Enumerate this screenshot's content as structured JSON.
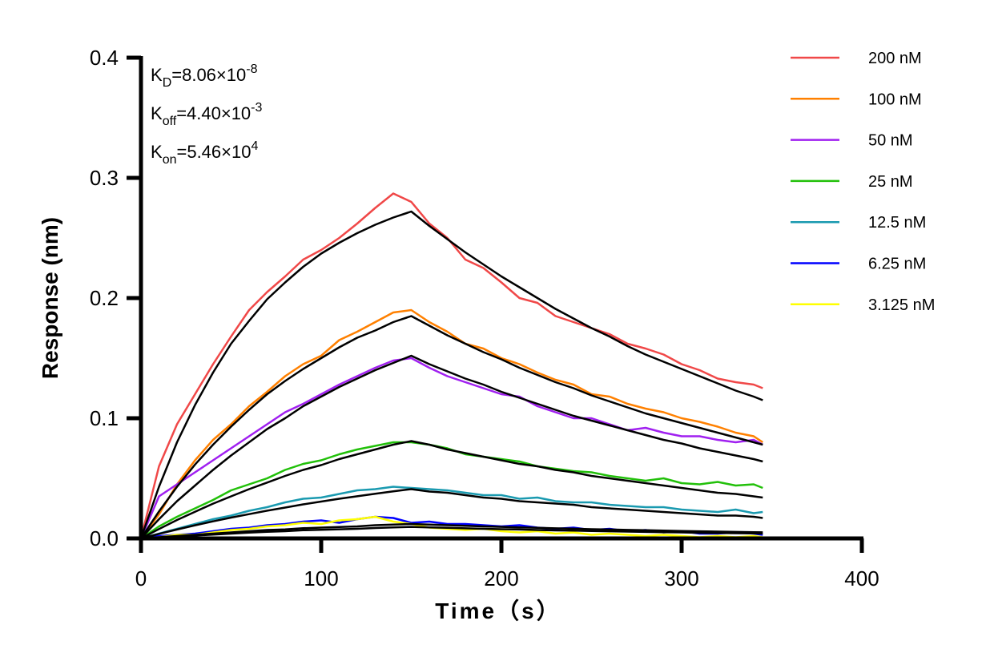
{
  "chart_data": {
    "type": "line",
    "title": "",
    "xlabel": "Time（s）",
    "ylabel": "Response (nm)",
    "xlim": [
      0,
      400
    ],
    "ylim": [
      0,
      0.4
    ],
    "xticks": [
      "0",
      "100",
      "200",
      "300",
      "400"
    ],
    "yticks": [
      "0.0",
      "0.1",
      "0.2",
      "0.3",
      "0.4"
    ],
    "grid": false,
    "legend_position": "top-right",
    "annotations": [
      {
        "main": "K",
        "sub": "D",
        "value": "=8.06×10",
        "exp": "-8"
      },
      {
        "main": "K",
        "sub": "off",
        "value": "=4.40×10",
        "exp": "-3"
      },
      {
        "main": "K",
        "sub": "on",
        "value": "=5.46×10",
        "exp": "4"
      }
    ],
    "fit_color": "#000000",
    "x": [
      0,
      10,
      20,
      30,
      40,
      50,
      60,
      70,
      80,
      90,
      100,
      110,
      120,
      130,
      140,
      150,
      160,
      170,
      180,
      190,
      200,
      210,
      220,
      230,
      240,
      250,
      260,
      270,
      280,
      290,
      300,
      310,
      320,
      330,
      340,
      345
    ],
    "series": [
      {
        "name": "200 nM",
        "color": "#f04848",
        "values": [
          0,
          0.06,
          0.095,
          0.12,
          0.145,
          0.168,
          0.19,
          0.205,
          0.218,
          0.232,
          0.24,
          0.25,
          0.262,
          0.275,
          0.287,
          0.28,
          0.262,
          0.25,
          0.232,
          0.225,
          0.213,
          0.2,
          0.196,
          0.185,
          0.18,
          0.175,
          0.17,
          0.162,
          0.158,
          0.153,
          0.145,
          0.14,
          0.133,
          0.13,
          0.128,
          0.125
        ],
        "fit": [
          0,
          0.043,
          0.08,
          0.111,
          0.138,
          0.162,
          0.181,
          0.199,
          0.213,
          0.226,
          0.237,
          0.246,
          0.254,
          0.261,
          0.267,
          0.272,
          0.26,
          0.249,
          0.238,
          0.228,
          0.218,
          0.209,
          0.2,
          0.191,
          0.183,
          0.175,
          0.168,
          0.16,
          0.153,
          0.147,
          0.141,
          0.135,
          0.129,
          0.123,
          0.118,
          0.115
        ]
      },
      {
        "name": "100 nM",
        "color": "#ff8000",
        "values": [
          0,
          0.02,
          0.045,
          0.065,
          0.082,
          0.095,
          0.11,
          0.122,
          0.135,
          0.145,
          0.152,
          0.165,
          0.172,
          0.18,
          0.188,
          0.19,
          0.18,
          0.172,
          0.162,
          0.158,
          0.15,
          0.145,
          0.138,
          0.132,
          0.128,
          0.12,
          0.118,
          0.112,
          0.108,
          0.105,
          0.1,
          0.097,
          0.093,
          0.088,
          0.085,
          0.08
        ],
        "fit": [
          0,
          0.0225,
          0.043,
          0.0615,
          0.078,
          0.093,
          0.107,
          0.12,
          0.131,
          0.141,
          0.15,
          0.159,
          0.167,
          0.173,
          0.18,
          0.185,
          0.177,
          0.169,
          0.162,
          0.155,
          0.149,
          0.142,
          0.136,
          0.13,
          0.125,
          0.119,
          0.114,
          0.109,
          0.104,
          0.1,
          0.096,
          0.092,
          0.088,
          0.084,
          0.08,
          0.078
        ]
      },
      {
        "name": "50 nM",
        "color": "#a020f0",
        "values": [
          0,
          0.035,
          0.045,
          0.055,
          0.065,
          0.075,
          0.085,
          0.095,
          0.105,
          0.112,
          0.12,
          0.128,
          0.135,
          0.142,
          0.148,
          0.15,
          0.142,
          0.135,
          0.13,
          0.125,
          0.12,
          0.118,
          0.11,
          0.105,
          0.1,
          0.1,
          0.095,
          0.09,
          0.092,
          0.088,
          0.085,
          0.085,
          0.082,
          0.08,
          0.082,
          0.078
        ],
        "fit": [
          0,
          0.016,
          0.031,
          0.044,
          0.057,
          0.069,
          0.08,
          0.091,
          0.1,
          0.11,
          0.118,
          0.126,
          0.133,
          0.14,
          0.146,
          0.152,
          0.145,
          0.139,
          0.133,
          0.128,
          0.122,
          0.117,
          0.112,
          0.107,
          0.102,
          0.098,
          0.094,
          0.09,
          0.086,
          0.082,
          0.079,
          0.075,
          0.072,
          0.069,
          0.066,
          0.064
        ]
      },
      {
        "name": "25 nM",
        "color": "#22c00a",
        "values": [
          0,
          0.01,
          0.018,
          0.025,
          0.032,
          0.04,
          0.045,
          0.05,
          0.057,
          0.062,
          0.065,
          0.07,
          0.074,
          0.077,
          0.08,
          0.08,
          0.078,
          0.075,
          0.07,
          0.068,
          0.066,
          0.064,
          0.06,
          0.058,
          0.056,
          0.055,
          0.052,
          0.05,
          0.048,
          0.05,
          0.046,
          0.045,
          0.047,
          0.044,
          0.045,
          0.042
        ],
        "fit": [
          0,
          0.0078,
          0.0153,
          0.0222,
          0.0289,
          0.035,
          0.041,
          0.0465,
          0.052,
          0.057,
          0.061,
          0.066,
          0.07,
          0.074,
          0.078,
          0.081,
          0.078,
          0.074,
          0.071,
          0.068,
          0.065,
          0.062,
          0.06,
          0.057,
          0.055,
          0.052,
          0.05,
          0.048,
          0.046,
          0.044,
          0.042,
          0.04,
          0.038,
          0.037,
          0.035,
          0.034
        ]
      },
      {
        "name": "12.5 nM",
        "color": "#1a9ab0",
        "values": [
          0,
          0.004,
          0.008,
          0.012,
          0.016,
          0.019,
          0.023,
          0.026,
          0.03,
          0.033,
          0.034,
          0.037,
          0.04,
          0.041,
          0.043,
          0.042,
          0.041,
          0.04,
          0.038,
          0.036,
          0.036,
          0.033,
          0.034,
          0.031,
          0.03,
          0.03,
          0.028,
          0.027,
          0.026,
          0.026,
          0.024,
          0.023,
          0.022,
          0.024,
          0.021,
          0.022
        ],
        "fit": [
          0,
          0.0038,
          0.0074,
          0.0109,
          0.0142,
          0.0173,
          0.0202,
          0.0231,
          0.0257,
          0.0283,
          0.0307,
          0.033,
          0.0351,
          0.0372,
          0.0392,
          0.041,
          0.039,
          0.038,
          0.036,
          0.034,
          0.033,
          0.031,
          0.03,
          0.029,
          0.028,
          0.026,
          0.025,
          0.024,
          0.023,
          0.022,
          0.021,
          0.02,
          0.019,
          0.019,
          0.018,
          0.017
        ]
      },
      {
        "name": "6.25 nM",
        "color": "#0000ff",
        "values": [
          0,
          0.002,
          0.003,
          0.004,
          0.006,
          0.008,
          0.009,
          0.011,
          0.012,
          0.014,
          0.015,
          0.013,
          0.016,
          0.018,
          0.017,
          0.013,
          0.014,
          0.012,
          0.012,
          0.011,
          0.01,
          0.011,
          0.009,
          0.008,
          0.009,
          0.007,
          0.008,
          0.006,
          0.007,
          0.005,
          0.006,
          0.004,
          0.004,
          0.005,
          0.004,
          0.003
        ],
        "fit": [
          0,
          0.001,
          0.002,
          0.003,
          0.004,
          0.005,
          0.006,
          0.007,
          0.0075,
          0.0085,
          0.009,
          0.0095,
          0.01,
          0.011,
          0.0115,
          0.012,
          0.0115,
          0.011,
          0.0105,
          0.01,
          0.0096,
          0.0092,
          0.0088,
          0.0084,
          0.0081,
          0.0077,
          0.0074,
          0.0071,
          0.0068,
          0.0065,
          0.0062,
          0.0059,
          0.0057,
          0.0054,
          0.0052,
          0.0051
        ]
      },
      {
        "name": "3.125 nM",
        "color": "#ffff00",
        "values": [
          0,
          0.001,
          0.003,
          0.003,
          0.005,
          0.007,
          0.008,
          0.01,
          0.011,
          0.013,
          0.012,
          0.015,
          0.016,
          0.018,
          0.014,
          0.012,
          0.009,
          0.008,
          0.007,
          0.008,
          0.006,
          0.005,
          0.006,
          0.004,
          0.005,
          0.003,
          0.004,
          0.003,
          0.002,
          0.003,
          0.002,
          0.001,
          0.002,
          0.001,
          0.002,
          0.001
        ],
        "fit": [
          0,
          0.0008,
          0.0016,
          0.0024,
          0.0032,
          0.004,
          0.0048,
          0.0055,
          0.006,
          0.0068,
          0.0072,
          0.0076,
          0.008,
          0.0087,
          0.0092,
          0.0096,
          0.0092,
          0.0088,
          0.0084,
          0.008,
          0.0077,
          0.0074,
          0.007,
          0.0067,
          0.0065,
          0.0062,
          0.0059,
          0.0057,
          0.0054,
          0.0052,
          0.005,
          0.0047,
          0.0045,
          0.0043,
          0.0042,
          0.0041
        ]
      }
    ]
  }
}
